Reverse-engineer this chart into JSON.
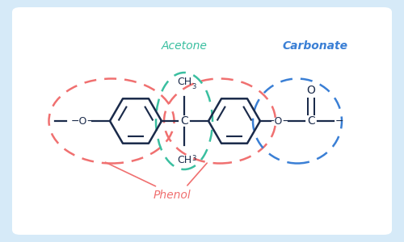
{
  "background_outer": "#d6eaf8",
  "background_inner": "#ffffff",
  "phenol_label": "Phenol",
  "acetone_label": "Acetone",
  "carbonate_label": "Carbonate",
  "phenol_color": "#f07070",
  "acetone_color": "#3abfa0",
  "carbonate_color": "#3a7fd5",
  "atom_color": "#1a2a4a",
  "benzene_lw": 1.8,
  "bond_lw": 1.6
}
